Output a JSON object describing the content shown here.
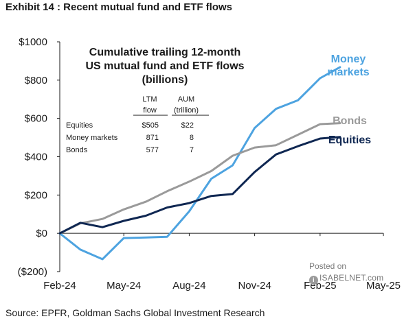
{
  "exhibit_title": "Exhibit 14 : Recent mutual fund and ETF flows",
  "source": "Source: EPFR, Goldman Sachs Global Investment Research",
  "watermark": {
    "line1": "Posted on",
    "line2": "ISABELNET.com"
  },
  "chart_data": {
    "type": "line",
    "title": "Cumulative trailing 12-month US mutual fund and ETF flows (billions)",
    "title_lines": [
      "Cumulative trailing 12-month",
      "US  mutual fund and ETF flows",
      "(billions)"
    ],
    "xlabel": "",
    "ylabel": "",
    "x_ticks": [
      "Feb-24",
      "May-24",
      "Aug-24",
      "Nov-24",
      "Feb-25",
      "May-25"
    ],
    "y_ticks": [
      "($200)",
      "$0",
      "$200",
      "$400",
      "$600",
      "$800",
      "$1000"
    ],
    "y_tick_values": [
      -200,
      0,
      200,
      400,
      600,
      800,
      1000
    ],
    "ylim": [
      -200,
      1000
    ],
    "grid": false,
    "series": [
      {
        "name": "Money markets",
        "label_lines": [
          "Money",
          "markets"
        ],
        "color": "#4da3e0",
        "points": [
          [
            "2024-02-01",
            0
          ],
          [
            "2024-03-01",
            -85
          ],
          [
            "2024-04-01",
            -135
          ],
          [
            "2024-05-01",
            -25
          ],
          [
            "2024-06-01",
            -22
          ],
          [
            "2024-07-01",
            -18
          ],
          [
            "2024-08-01",
            115
          ],
          [
            "2024-09-01",
            285
          ],
          [
            "2024-10-01",
            355
          ],
          [
            "2024-11-01",
            550
          ],
          [
            "2024-12-01",
            650
          ],
          [
            "2025-01-01",
            695
          ],
          [
            "2025-02-01",
            810
          ],
          [
            "2025-03-01",
            868
          ]
        ]
      },
      {
        "name": "Bonds",
        "label_lines": [
          "Bonds"
        ],
        "color": "#9a9a9a",
        "points": [
          [
            "2024-02-01",
            0
          ],
          [
            "2024-03-01",
            52
          ],
          [
            "2024-04-01",
            75
          ],
          [
            "2024-05-01",
            125
          ],
          [
            "2024-06-01",
            165
          ],
          [
            "2024-07-01",
            220
          ],
          [
            "2024-08-01",
            270
          ],
          [
            "2024-09-01",
            325
          ],
          [
            "2024-10-01",
            405
          ],
          [
            "2024-11-01",
            448
          ],
          [
            "2024-12-01",
            460
          ],
          [
            "2025-01-01",
            515
          ],
          [
            "2025-02-01",
            570
          ],
          [
            "2025-03-01",
            575
          ]
        ]
      },
      {
        "name": "Equities",
        "label_lines": [
          "Equities"
        ],
        "color": "#0f2752",
        "points": [
          [
            "2024-02-01",
            0
          ],
          [
            "2024-03-01",
            55
          ],
          [
            "2024-04-01",
            32
          ],
          [
            "2024-05-01",
            65
          ],
          [
            "2024-06-01",
            92
          ],
          [
            "2024-07-01",
            135
          ],
          [
            "2024-08-01",
            158
          ],
          [
            "2024-09-01",
            195
          ],
          [
            "2024-10-01",
            205
          ],
          [
            "2024-11-01",
            320
          ],
          [
            "2024-12-01",
            412
          ],
          [
            "2025-01-01",
            455
          ],
          [
            "2025-02-01",
            495
          ],
          [
            "2025-03-01",
            503
          ]
        ]
      }
    ],
    "table": {
      "headers": [
        [
          "LTM",
          "flow"
        ],
        [
          "AUM",
          "(trillion)"
        ]
      ],
      "rows": [
        {
          "label": "Equities",
          "flow": "$505",
          "aum": "$22"
        },
        {
          "label": "Money markets",
          "flow": "871",
          "aum": "8"
        },
        {
          "label": "Bonds",
          "flow": "577",
          "aum": "7"
        }
      ]
    }
  }
}
